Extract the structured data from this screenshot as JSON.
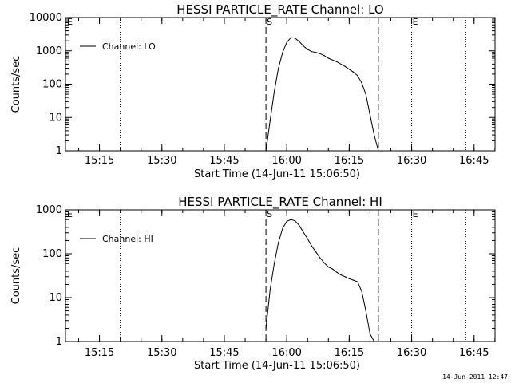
{
  "footer_timestamp": "14-Jun-2011 12:47",
  "colors": {
    "background": "#ffffff",
    "ink": "#000000"
  },
  "chart_data": [
    {
      "type": "line",
      "title": "HESSI PARTICLE_RATE Channel: LO",
      "xlabel": "Start Time (14-Jun-11 15:06:50)",
      "ylabel": "Counts/sec",
      "yscale": "log",
      "ylim": [
        1,
        10000
      ],
      "xlim_minutes_after_start": [
        0,
        103.2
      ],
      "xticks": [
        "15:15",
        "15:30",
        "15:45",
        "16:00",
        "16:15",
        "16:30",
        "16:45"
      ],
      "yticks": [
        "1",
        "10",
        "100",
        "1000",
        "10000"
      ],
      "legend": {
        "position": "top-left",
        "entries": [
          "Channel: LO"
        ]
      },
      "markers": [
        {
          "label": "",
          "time": "15:20",
          "style": "dotted"
        },
        {
          "label": "S",
          "time": "15:55",
          "style": "dashed"
        },
        {
          "label": "",
          "time": "16:22",
          "style": "dashed"
        },
        {
          "label": "E",
          "time": "16:30",
          "style": "dotted"
        },
        {
          "label": "",
          "time": "16:43",
          "style": "dotted"
        }
      ],
      "corner_marks": [
        "E"
      ],
      "series": [
        {
          "name": "Channel: LO",
          "x": [
            "15:55",
            "15:56",
            "15:57",
            "15:58",
            "15:59",
            "16:00",
            "16:01",
            "16:02",
            "16:03",
            "16:04",
            "16:05",
            "16:06",
            "16:07",
            "16:08",
            "16:09",
            "16:10",
            "16:12",
            "16:14",
            "16:16",
            "16:17",
            "16:18",
            "16:19",
            "16:20",
            "16:21",
            "16:22"
          ],
          "y": [
            1,
            8,
            60,
            300,
            900,
            1800,
            2500,
            2400,
            1900,
            1400,
            1100,
            950,
            900,
            820,
            720,
            600,
            470,
            340,
            230,
            180,
            110,
            50,
            12,
            3,
            1
          ]
        }
      ]
    },
    {
      "type": "line",
      "title": "HESSI PARTICLE_RATE Channel: HI",
      "xlabel": "Start Time (14-Jun-11 15:06:50)",
      "ylabel": "Counts/sec",
      "yscale": "log",
      "ylim": [
        1,
        1000
      ],
      "xlim_minutes_after_start": [
        0,
        103.2
      ],
      "xticks": [
        "15:15",
        "15:30",
        "15:45",
        "16:00",
        "16:15",
        "16:30",
        "16:45"
      ],
      "yticks": [
        "1",
        "10",
        "100",
        "1000"
      ],
      "legend": {
        "position": "top-left",
        "entries": [
          "Channel: HI"
        ]
      },
      "markers": [
        {
          "label": "",
          "time": "15:20",
          "style": "dotted"
        },
        {
          "label": "S",
          "time": "15:55",
          "style": "dashed"
        },
        {
          "label": "",
          "time": "16:22",
          "style": "dashed"
        },
        {
          "label": "E",
          "time": "16:30",
          "style": "dotted"
        },
        {
          "label": "",
          "time": "16:43",
          "style": "dotted"
        }
      ],
      "corner_marks": [
        "E"
      ],
      "series": [
        {
          "name": "Channel: HI",
          "x": [
            "15:55",
            "15:56",
            "15:57",
            "15:58",
            "15:59",
            "16:00",
            "16:01",
            "16:02",
            "16:03",
            "16:04",
            "16:05",
            "16:06",
            "16:07",
            "16:08",
            "16:09",
            "16:10",
            "16:11",
            "16:12",
            "16:13",
            "16:14",
            "16:15",
            "16:16",
            "16:17",
            "16:18",
            "16:19",
            "16:20",
            "16:21"
          ],
          "y": [
            2,
            15,
            60,
            180,
            380,
            550,
            600,
            560,
            440,
            310,
            220,
            150,
            110,
            80,
            62,
            50,
            45,
            38,
            33,
            30,
            27,
            25,
            23,
            14,
            5,
            1.5,
            1
          ]
        }
      ]
    }
  ]
}
